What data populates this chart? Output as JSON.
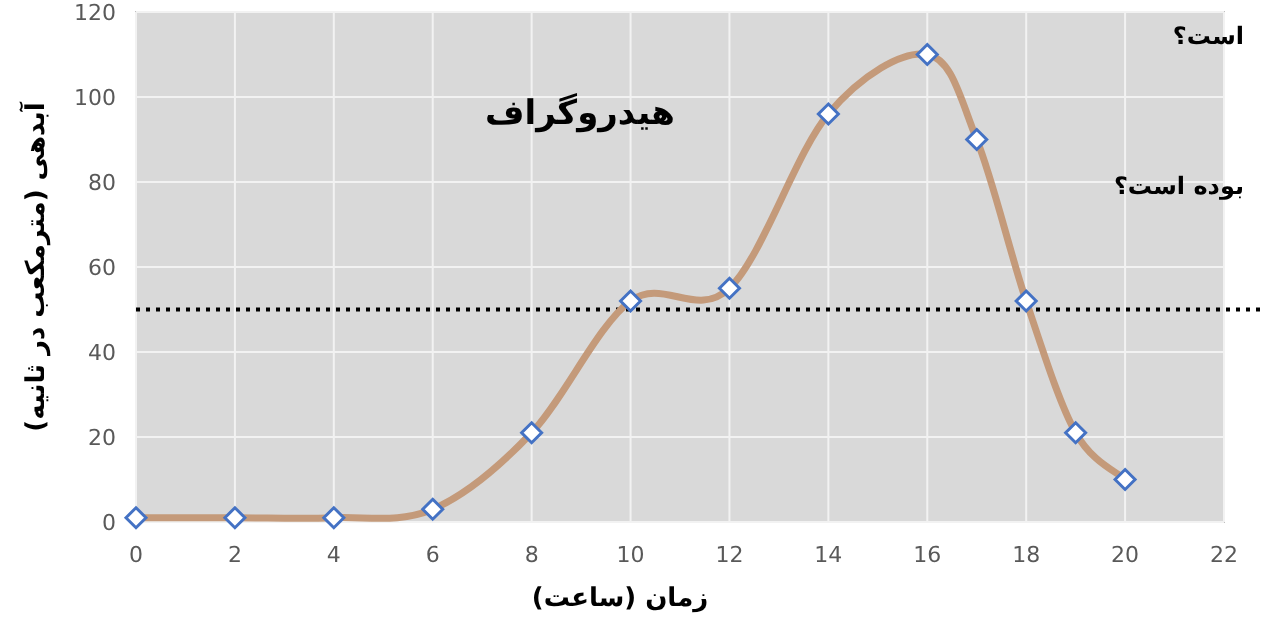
{
  "chart_data": {
    "type": "line",
    "title": "هیدروگراف",
    "xlabel": "زمان (ساعت)",
    "ylabel": "آبدهی (مترمکعب در ثانیه)",
    "x": [
      0,
      2,
      4,
      6,
      8,
      10,
      12,
      14,
      16,
      17,
      18,
      19,
      20
    ],
    "series": [
      {
        "color": "#c49a7a",
        "values": [
          1,
          1,
          1,
          3,
          21,
          52,
          55,
          96,
          110,
          90,
          52,
          21,
          10
        ]
      }
    ],
    "xlim": [
      0,
      22
    ],
    "xticks": [
      0,
      2,
      4,
      6,
      8,
      10,
      12,
      14,
      16,
      18,
      20,
      22
    ],
    "ylim": [
      0,
      120
    ],
    "yticks": [
      0,
      20,
      40,
      60,
      80,
      100,
      120
    ],
    "marker": "diamond",
    "line_style": "solid",
    "grid": true,
    "ref_lines": [
      {
        "axis": "y",
        "value": 50,
        "color": "#000000",
        "line_style": "dotted"
      }
    ],
    "annotations": [
      "است؟",
      "بوده است؟"
    ]
  }
}
